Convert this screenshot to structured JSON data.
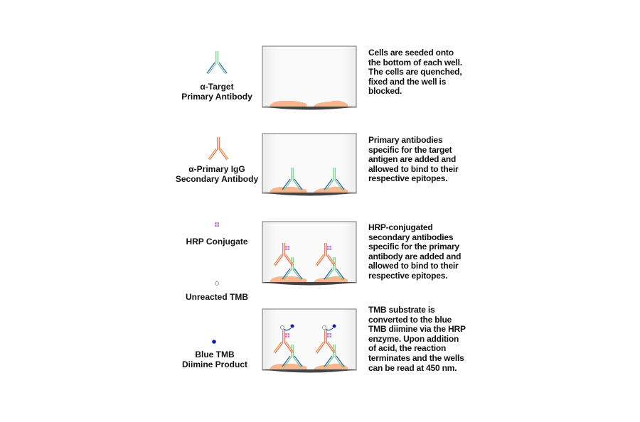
{
  "legend": [
    {
      "id": "primary",
      "label_line1": "α-Target",
      "label_line2": "Primary Antibody",
      "icon": "green-antibody-icon"
    },
    {
      "id": "secondary",
      "label_line1": "α-Primary IgG",
      "label_line2": "Secondary Antibody",
      "icon": "orange-antibody-icon"
    },
    {
      "id": "hrp",
      "label_line1": "HRP Conjugate",
      "label_line2": "",
      "icon": "hrp-square-icon"
    },
    {
      "id": "tmb",
      "label_line1": "Unreacted TMB",
      "label_line2": "",
      "icon": "open-circle-icon"
    },
    {
      "id": "diimine",
      "label_line1": "Blue TMB",
      "label_line2": "Diimine Product",
      "icon": "blue-dot-icon"
    }
  ],
  "steps": [
    {
      "description": "Cells are seeded onto the bottom of each well. The cells are quenched, fixed and the well is blocked."
    },
    {
      "description": "Primary antibodies specific for the target antigen are added and allowed to bind to their respective epitopes."
    },
    {
      "description": "HRP-conjugated secondary antibodies specific for the primary antibody are added and allowed to bind to their respective epitopes."
    },
    {
      "description": "TMB substrate is converted to the blue TMB diimine via the HRP enzyme. Upon addition of acid, the reaction terminates and the wells can be read at 450 nm."
    }
  ],
  "colors": {
    "primary_antibody": "#6fd08c",
    "secondary_antibody": "#e8705a",
    "antibody_outer": "#3c5fb0",
    "secondary_outer": "#e89a3c",
    "hrp": "#c77fd6",
    "blue_tmb": "#1a1aa8",
    "cell": "#f4b58f",
    "well_base": "#444444"
  }
}
